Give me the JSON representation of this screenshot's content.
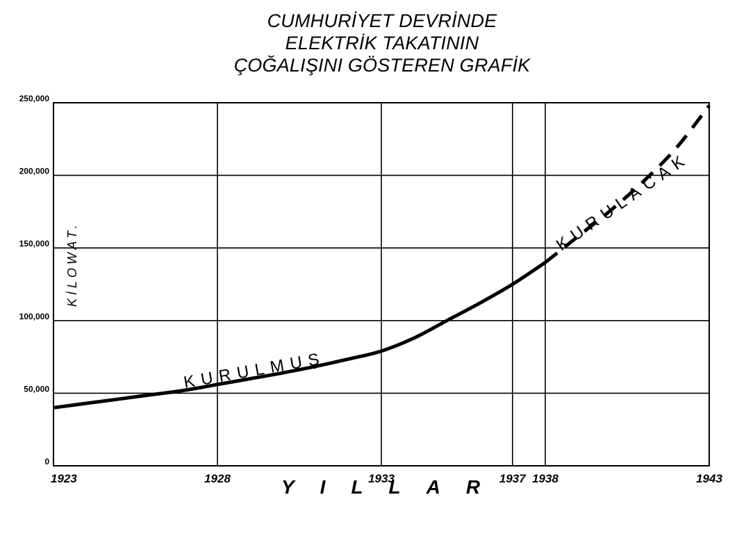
{
  "chart_data": {
    "type": "line",
    "title_lines": [
      "CUMHURİYET DEVRİNDE",
      "ELEKTRİK TAKATININ",
      "ÇOĞALIŞINI GÖSTEREN GRAFİK"
    ],
    "ylabel": "KİLOWAT.",
    "xlabel": "YILLAR",
    "xlim": [
      1923,
      1943
    ],
    "ylim": [
      0,
      250000
    ],
    "x_ticks": [
      "1923",
      "1928",
      "1933",
      "1937",
      "1938",
      "1943"
    ],
    "y_ticks": [
      "0",
      "50,000",
      "100,000",
      "150,000",
      "200,000",
      "250,000"
    ],
    "grid": true,
    "series": [
      {
        "name": "KURULMUŞ",
        "style": "solid",
        "x": [
          1923,
          1924,
          1925,
          1926,
          1927,
          1928,
          1929,
          1930,
          1931,
          1932,
          1933,
          1934,
          1935,
          1936,
          1937,
          1938
        ],
        "values": [
          40000,
          43000,
          46000,
          49000,
          52000,
          56000,
          60000,
          64000,
          68500,
          73500,
          79000,
          88000,
          100000,
          112000,
          125000,
          140000
        ]
      },
      {
        "name": "KURULACAK",
        "style": "dashed",
        "x": [
          1938,
          1939,
          1940,
          1941,
          1942,
          1943
        ],
        "values": [
          140000,
          158000,
          176000,
          196000,
          219000,
          248000
        ]
      }
    ]
  }
}
